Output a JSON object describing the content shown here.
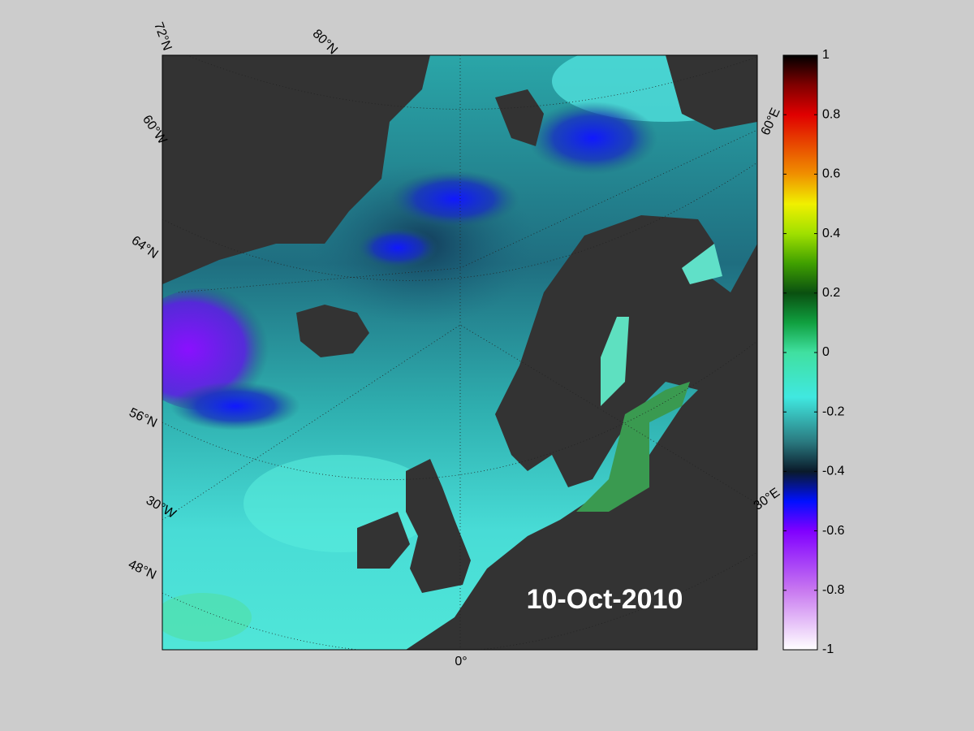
{
  "map": {
    "date": "10-Oct-2010",
    "graticule_labels": {
      "lat_72": "72°N",
      "lat_80": "80°N",
      "lon_60w": "60°W",
      "lat_64": "64°N",
      "lat_56": "56°N",
      "lon_30w": "30°W",
      "lat_48": "48°N",
      "lon_0": "0°",
      "lon_30e": "30°E",
      "lon_60e": "60°E"
    },
    "colorbar": {
      "lim": [
        -1,
        1
      ],
      "ticks": [
        -1,
        -0.8,
        -0.6,
        -0.4,
        -0.2,
        0,
        0.2,
        0.4,
        0.6,
        0.8,
        1
      ],
      "stops": [
        {
          "value": -1,
          "color": "#ffffff"
        },
        {
          "value": -0.8,
          "color": "#c878f0"
        },
        {
          "value": -0.6,
          "color": "#8000ff"
        },
        {
          "value": -0.5,
          "color": "#0010ff"
        },
        {
          "value": -0.4,
          "color": "#0a1a2a"
        },
        {
          "value": -0.3,
          "color": "#2a7a80"
        },
        {
          "value": -0.15,
          "color": "#40e8e0"
        },
        {
          "value": 0,
          "color": "#40e0a0"
        },
        {
          "value": 0.1,
          "color": "#10a040"
        },
        {
          "value": 0.2,
          "color": "#0a5010"
        },
        {
          "value": 0.3,
          "color": "#40a000"
        },
        {
          "value": 0.4,
          "color": "#a0e000"
        },
        {
          "value": 0.5,
          "color": "#f0f000"
        },
        {
          "value": 0.6,
          "color": "#f09000"
        },
        {
          "value": 0.8,
          "color": "#e00000"
        },
        {
          "value": 0.9,
          "color": "#800000"
        },
        {
          "value": 1,
          "color": "#000000"
        }
      ]
    }
  }
}
